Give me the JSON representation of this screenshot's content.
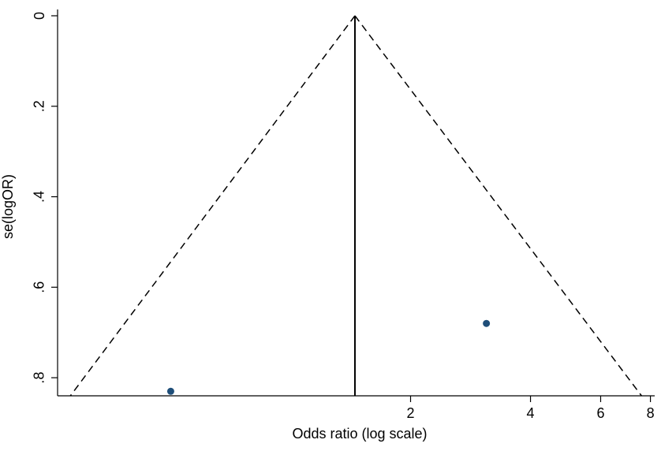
{
  "chart_data": {
    "type": "scatter",
    "title": "",
    "xlabel": "Odds ratio (log scale)",
    "ylabel": "se(logOR)",
    "x_scale": "log",
    "y_reversed": true,
    "xlim": [
      0.26,
      8.2
    ],
    "ylim": [
      0,
      0.84
    ],
    "x_ticks": [
      2,
      4,
      6,
      8
    ],
    "x_tick_labels": [
      "2",
      "4",
      "6",
      "8"
    ],
    "y_ticks": [
      0,
      0.2,
      0.4,
      0.6,
      0.8
    ],
    "y_tick_labels": [
      "0",
      ".2",
      ".4",
      ".6",
      ".8"
    ],
    "grid": false,
    "legend": "none",
    "pooled_or": 1.45,
    "pseudo_ci_limits": {
      "se_max": 0.84,
      "lower_or_at_se_max": 0.28,
      "upper_or_at_se_max": 7.6
    },
    "points": [
      {
        "or": 0.5,
        "se": 0.83
      },
      {
        "or": 3.1,
        "se": 0.68
      }
    ],
    "colors": {
      "points": "#1f4e79",
      "lines": "#000000"
    }
  }
}
